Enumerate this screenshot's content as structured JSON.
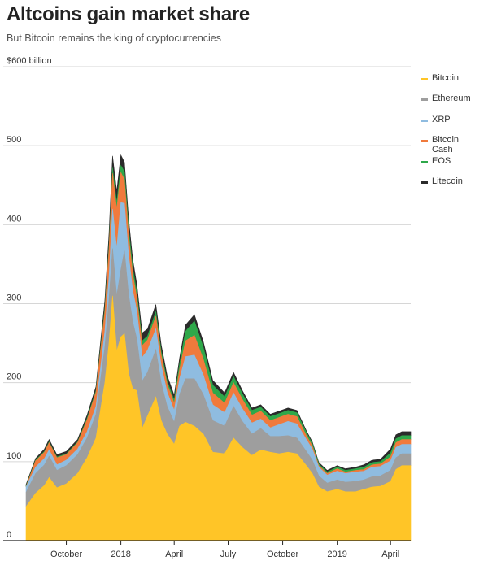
{
  "title": "Altcoins gain market share",
  "subtitle": "But Bitcoin remains the king of cryptocurrencies",
  "chart_data": {
    "type": "area",
    "stacked": true,
    "title": "Altcoins gain market share",
    "subtitle": "But Bitcoin remains the king of cryptocurrencies",
    "ylabel": "$600 billion",
    "ylim": [
      0,
      600
    ],
    "y_ticks": [
      "0",
      "100",
      "200",
      "300",
      "400",
      "500",
      "$600 billion"
    ],
    "y_tick_values": [
      0,
      100,
      200,
      300,
      400,
      500,
      600
    ],
    "x_ticks": [
      "October",
      "2018",
      "April",
      "July",
      "October",
      "2019",
      "April"
    ],
    "x_tick_positions": [
      "2017-10-01",
      "2018-01-01",
      "2018-04-01",
      "2018-07-01",
      "2018-10-01",
      "2019-01-01",
      "2019-04-01"
    ],
    "xlim": [
      "2017-07-25",
      "2019-05-05"
    ],
    "grid": true,
    "legend_position": "right",
    "x": [
      "2017-07-25",
      "2017-08-10",
      "2017-08-25",
      "2017-09-02",
      "2017-09-15",
      "2017-10-01",
      "2017-10-20",
      "2017-11-05",
      "2017-11-20",
      "2017-12-05",
      "2017-12-12",
      "2017-12-18",
      "2017-12-25",
      "2018-01-01",
      "2018-01-07",
      "2018-01-14",
      "2018-01-21",
      "2018-01-28",
      "2018-02-06",
      "2018-02-15",
      "2018-03-01",
      "2018-03-10",
      "2018-03-20",
      "2018-04-01",
      "2018-04-10",
      "2018-04-20",
      "2018-05-05",
      "2018-05-20",
      "2018-06-05",
      "2018-06-25",
      "2018-07-10",
      "2018-07-25",
      "2018-08-10",
      "2018-08-25",
      "2018-09-10",
      "2018-09-25",
      "2018-10-10",
      "2018-10-25",
      "2018-11-10",
      "2018-11-20",
      "2018-12-01",
      "2018-12-15",
      "2019-01-01",
      "2019-01-15",
      "2019-02-01",
      "2019-02-15",
      "2019-03-01",
      "2019-03-15",
      "2019-04-01",
      "2019-04-10",
      "2019-04-20",
      "2019-05-05"
    ],
    "series": [
      {
        "name": "Bitcoin",
        "color": "#FFC527",
        "values": [
          43,
          60,
          70,
          80,
          67,
          72,
          85,
          105,
          130,
          200,
          250,
          310,
          240,
          258,
          262,
          212,
          192,
          190,
          142,
          158,
          182,
          152,
          135,
          122,
          145,
          150,
          145,
          135,
          112,
          110,
          130,
          118,
          108,
          115,
          112,
          110,
          112,
          110,
          95,
          85,
          68,
          62,
          65,
          62,
          62,
          65,
          68,
          69,
          75,
          90,
          95,
          95
        ]
      },
      {
        "name": "Ethereum",
        "color": "#9E9E9E",
        "values": [
          18,
          25,
          26,
          27,
          22,
          23,
          24,
          25,
          30,
          45,
          55,
          60,
          70,
          85,
          105,
          100,
          85,
          65,
          60,
          55,
          60,
          48,
          35,
          28,
          40,
          55,
          60,
          50,
          40,
          35,
          40,
          33,
          27,
          27,
          20,
          22,
          21,
          20,
          18,
          17,
          14,
          11,
          12,
          12,
          13,
          12,
          13,
          13,
          14,
          15,
          15,
          15
        ]
      },
      {
        "name": "XRP",
        "color": "#8FBCE0",
        "values": [
          7,
          8,
          8,
          8,
          7,
          7,
          7,
          8,
          10,
          20,
          28,
          50,
          60,
          85,
          60,
          50,
          40,
          35,
          30,
          28,
          26,
          22,
          18,
          15,
          20,
          28,
          30,
          25,
          20,
          17,
          17,
          16,
          14,
          12,
          11,
          15,
          18,
          18,
          15,
          14,
          11,
          10,
          11,
          11,
          12,
          11,
          12,
          12,
          12,
          13,
          12,
          12
        ]
      },
      {
        "name": "Bitcoin Cash",
        "color": "#F07A3C",
        "values": [
          0,
          8,
          8,
          9,
          9,
          7,
          8,
          15,
          18,
          25,
          35,
          45,
          50,
          38,
          30,
          25,
          20,
          17,
          15,
          13,
          16,
          13,
          10,
          9,
          12,
          20,
          25,
          20,
          15,
          12,
          13,
          12,
          10,
          10,
          9,
          9,
          9,
          9,
          5,
          4,
          2,
          2,
          3,
          2,
          2,
          2,
          3,
          3,
          5,
          6,
          6,
          6
        ]
      },
      {
        "name": "EOS",
        "color": "#2EA84A",
        "values": [
          1,
          1,
          1,
          1,
          1,
          1,
          1,
          2,
          2,
          4,
          5,
          7,
          8,
          9,
          10,
          9,
          8,
          7,
          6,
          5,
          6,
          5,
          4,
          4,
          7,
          12,
          18,
          15,
          10,
          8,
          8,
          7,
          6,
          5,
          5,
          5,
          5,
          5,
          4,
          3,
          2,
          2,
          2,
          2,
          2,
          3,
          3,
          3,
          5,
          5,
          5,
          5
        ]
      },
      {
        "name": "Litecoin",
        "color": "#2B2B2B",
        "values": [
          2,
          2,
          3,
          3,
          3,
          3,
          3,
          4,
          5,
          10,
          15,
          15,
          14,
          13,
          12,
          12,
          11,
          10,
          10,
          9,
          9,
          8,
          7,
          6,
          7,
          8,
          8,
          7,
          6,
          5,
          5,
          4,
          3,
          3,
          3,
          3,
          3,
          3,
          2,
          2,
          2,
          2,
          2,
          2,
          2,
          3,
          3,
          3,
          5,
          5,
          5,
          5
        ]
      }
    ]
  }
}
